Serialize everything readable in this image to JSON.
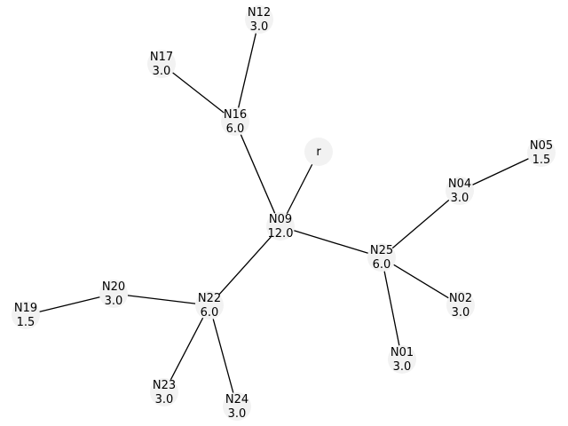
{
  "colors": {
    "background": "#ffffff",
    "node_fill": "#f2f2f2",
    "edge": "#000000",
    "text": "#000000"
  },
  "nodes": [
    {
      "id": "r",
      "label": "r",
      "value": ""
    },
    {
      "id": "N09",
      "label": "N09",
      "value": "12.0"
    },
    {
      "id": "N16",
      "label": "N16",
      "value": "6.0"
    },
    {
      "id": "N12",
      "label": "N12",
      "value": "3.0"
    },
    {
      "id": "N17",
      "label": "N17",
      "value": "3.0"
    },
    {
      "id": "N25",
      "label": "N25",
      "value": "6.0"
    },
    {
      "id": "N04",
      "label": "N04",
      "value": "3.0"
    },
    {
      "id": "N05",
      "label": "N05",
      "value": "1.5"
    },
    {
      "id": "N02",
      "label": "N02",
      "value": "3.0"
    },
    {
      "id": "N01",
      "label": "N01",
      "value": "3.0"
    },
    {
      "id": "N22",
      "label": "N22",
      "value": "6.0"
    },
    {
      "id": "N20",
      "label": "N20",
      "value": "3.0"
    },
    {
      "id": "N19",
      "label": "N19",
      "value": "1.5"
    },
    {
      "id": "N23",
      "label": "N23",
      "value": "3.0"
    },
    {
      "id": "N24",
      "label": "N24",
      "value": "3.0"
    }
  ],
  "edges": [
    {
      "from": "r",
      "to": "N09"
    },
    {
      "from": "N09",
      "to": "N16"
    },
    {
      "from": "N16",
      "to": "N12"
    },
    {
      "from": "N16",
      "to": "N17"
    },
    {
      "from": "N09",
      "to": "N25"
    },
    {
      "from": "N25",
      "to": "N04"
    },
    {
      "from": "N04",
      "to": "N05"
    },
    {
      "from": "N25",
      "to": "N02"
    },
    {
      "from": "N25",
      "to": "N01"
    },
    {
      "from": "N09",
      "to": "N22"
    },
    {
      "from": "N22",
      "to": "N20"
    },
    {
      "from": "N20",
      "to": "N19"
    },
    {
      "from": "N22",
      "to": "N23"
    },
    {
      "from": "N22",
      "to": "N24"
    }
  ]
}
